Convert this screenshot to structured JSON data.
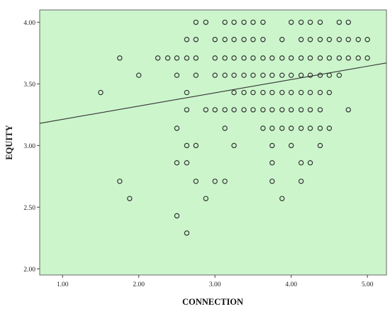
{
  "chart_data": {
    "type": "scatter",
    "xlabel": "CONNECTION",
    "ylabel": "EQUITY",
    "xlim": [
      0.7,
      5.25
    ],
    "ylim": [
      1.95,
      4.1
    ],
    "x_ticks": [
      "1.00",
      "2.00",
      "3.00",
      "4.00",
      "5.00"
    ],
    "y_ticks": [
      "2.00",
      "2.50",
      "3.00",
      "3.50",
      "4.00"
    ],
    "grid": false,
    "legend": "none",
    "colors": {
      "plot_background": "#ccf5cc",
      "marker": "#333333",
      "fit_line": "#333333"
    },
    "fit_line": {
      "x": [
        0.7,
        5.25
      ],
      "y": [
        3.18,
        3.67
      ]
    },
    "points": [
      {
        "x": 2.75,
        "y": 4.0
      },
      {
        "x": 2.88,
        "y": 4.0
      },
      {
        "x": 3.13,
        "y": 4.0
      },
      {
        "x": 3.25,
        "y": 4.0
      },
      {
        "x": 3.38,
        "y": 4.0
      },
      {
        "x": 3.5,
        "y": 4.0
      },
      {
        "x": 3.63,
        "y": 4.0
      },
      {
        "x": 4.0,
        "y": 4.0
      },
      {
        "x": 4.13,
        "y": 4.0
      },
      {
        "x": 4.25,
        "y": 4.0
      },
      {
        "x": 4.38,
        "y": 4.0
      },
      {
        "x": 4.63,
        "y": 4.0
      },
      {
        "x": 4.75,
        "y": 4.0
      },
      {
        "x": 2.63,
        "y": 3.86
      },
      {
        "x": 2.75,
        "y": 3.86
      },
      {
        "x": 3.0,
        "y": 3.86
      },
      {
        "x": 3.13,
        "y": 3.86
      },
      {
        "x": 3.25,
        "y": 3.86
      },
      {
        "x": 3.38,
        "y": 3.86
      },
      {
        "x": 3.5,
        "y": 3.86
      },
      {
        "x": 3.63,
        "y": 3.86
      },
      {
        "x": 3.88,
        "y": 3.86
      },
      {
        "x": 4.13,
        "y": 3.86
      },
      {
        "x": 4.25,
        "y": 3.86
      },
      {
        "x": 4.38,
        "y": 3.86
      },
      {
        "x": 4.5,
        "y": 3.86
      },
      {
        "x": 4.63,
        "y": 3.86
      },
      {
        "x": 4.75,
        "y": 3.86
      },
      {
        "x": 4.88,
        "y": 3.86
      },
      {
        "x": 5.0,
        "y": 3.86
      },
      {
        "x": 1.75,
        "y": 3.71
      },
      {
        "x": 2.25,
        "y": 3.71
      },
      {
        "x": 2.38,
        "y": 3.71
      },
      {
        "x": 2.5,
        "y": 3.71
      },
      {
        "x": 2.63,
        "y": 3.71
      },
      {
        "x": 2.75,
        "y": 3.71
      },
      {
        "x": 3.0,
        "y": 3.71
      },
      {
        "x": 3.13,
        "y": 3.71
      },
      {
        "x": 3.25,
        "y": 3.71
      },
      {
        "x": 3.38,
        "y": 3.71
      },
      {
        "x": 3.5,
        "y": 3.71
      },
      {
        "x": 3.63,
        "y": 3.71
      },
      {
        "x": 3.75,
        "y": 3.71
      },
      {
        "x": 3.88,
        "y": 3.71
      },
      {
        "x": 4.0,
        "y": 3.71
      },
      {
        "x": 4.13,
        "y": 3.71
      },
      {
        "x": 4.25,
        "y": 3.71
      },
      {
        "x": 4.38,
        "y": 3.71
      },
      {
        "x": 4.5,
        "y": 3.71
      },
      {
        "x": 4.63,
        "y": 3.71
      },
      {
        "x": 4.75,
        "y": 3.71
      },
      {
        "x": 4.88,
        "y": 3.71
      },
      {
        "x": 5.0,
        "y": 3.71
      },
      {
        "x": 2.0,
        "y": 3.57
      },
      {
        "x": 2.5,
        "y": 3.57
      },
      {
        "x": 2.75,
        "y": 3.57
      },
      {
        "x": 3.0,
        "y": 3.57
      },
      {
        "x": 3.13,
        "y": 3.57
      },
      {
        "x": 3.25,
        "y": 3.57
      },
      {
        "x": 3.38,
        "y": 3.57
      },
      {
        "x": 3.5,
        "y": 3.57
      },
      {
        "x": 3.63,
        "y": 3.57
      },
      {
        "x": 3.75,
        "y": 3.57
      },
      {
        "x": 3.88,
        "y": 3.57
      },
      {
        "x": 4.0,
        "y": 3.57
      },
      {
        "x": 4.13,
        "y": 3.57
      },
      {
        "x": 4.25,
        "y": 3.57
      },
      {
        "x": 4.38,
        "y": 3.57
      },
      {
        "x": 4.5,
        "y": 3.57
      },
      {
        "x": 4.63,
        "y": 3.57
      },
      {
        "x": 1.5,
        "y": 3.43
      },
      {
        "x": 2.63,
        "y": 3.43
      },
      {
        "x": 3.25,
        "y": 3.43
      },
      {
        "x": 3.38,
        "y": 3.43
      },
      {
        "x": 3.5,
        "y": 3.43
      },
      {
        "x": 3.63,
        "y": 3.43
      },
      {
        "x": 3.75,
        "y": 3.43
      },
      {
        "x": 3.88,
        "y": 3.43
      },
      {
        "x": 4.0,
        "y": 3.43
      },
      {
        "x": 4.13,
        "y": 3.43
      },
      {
        "x": 4.25,
        "y": 3.43
      },
      {
        "x": 4.38,
        "y": 3.43
      },
      {
        "x": 4.5,
        "y": 3.43
      },
      {
        "x": 2.63,
        "y": 3.29
      },
      {
        "x": 2.88,
        "y": 3.29
      },
      {
        "x": 3.0,
        "y": 3.29
      },
      {
        "x": 3.13,
        "y": 3.29
      },
      {
        "x": 3.25,
        "y": 3.29
      },
      {
        "x": 3.38,
        "y": 3.29
      },
      {
        "x": 3.5,
        "y": 3.29
      },
      {
        "x": 3.63,
        "y": 3.29
      },
      {
        "x": 3.75,
        "y": 3.29
      },
      {
        "x": 3.88,
        "y": 3.29
      },
      {
        "x": 4.0,
        "y": 3.29
      },
      {
        "x": 4.13,
        "y": 3.29
      },
      {
        "x": 4.25,
        "y": 3.29
      },
      {
        "x": 4.38,
        "y": 3.29
      },
      {
        "x": 4.75,
        "y": 3.29
      },
      {
        "x": 2.5,
        "y": 3.14
      },
      {
        "x": 3.13,
        "y": 3.14
      },
      {
        "x": 3.63,
        "y": 3.14
      },
      {
        "x": 3.75,
        "y": 3.14
      },
      {
        "x": 3.88,
        "y": 3.14
      },
      {
        "x": 4.0,
        "y": 3.14
      },
      {
        "x": 4.13,
        "y": 3.14
      },
      {
        "x": 4.25,
        "y": 3.14
      },
      {
        "x": 4.38,
        "y": 3.14
      },
      {
        "x": 4.5,
        "y": 3.14
      },
      {
        "x": 2.63,
        "y": 3.0
      },
      {
        "x": 2.75,
        "y": 3.0
      },
      {
        "x": 3.25,
        "y": 3.0
      },
      {
        "x": 3.75,
        "y": 3.0
      },
      {
        "x": 4.0,
        "y": 3.0
      },
      {
        "x": 4.38,
        "y": 3.0
      },
      {
        "x": 2.5,
        "y": 2.86
      },
      {
        "x": 2.63,
        "y": 2.86
      },
      {
        "x": 3.75,
        "y": 2.86
      },
      {
        "x": 4.13,
        "y": 2.86
      },
      {
        "x": 4.25,
        "y": 2.86
      },
      {
        "x": 1.75,
        "y": 2.71
      },
      {
        "x": 2.75,
        "y": 2.71
      },
      {
        "x": 3.0,
        "y": 2.71
      },
      {
        "x": 3.13,
        "y": 2.71
      },
      {
        "x": 3.75,
        "y": 2.71
      },
      {
        "x": 4.13,
        "y": 2.71
      },
      {
        "x": 1.88,
        "y": 2.57
      },
      {
        "x": 2.88,
        "y": 2.57
      },
      {
        "x": 3.88,
        "y": 2.57
      },
      {
        "x": 2.5,
        "y": 2.43
      },
      {
        "x": 2.63,
        "y": 2.29
      }
    ]
  }
}
